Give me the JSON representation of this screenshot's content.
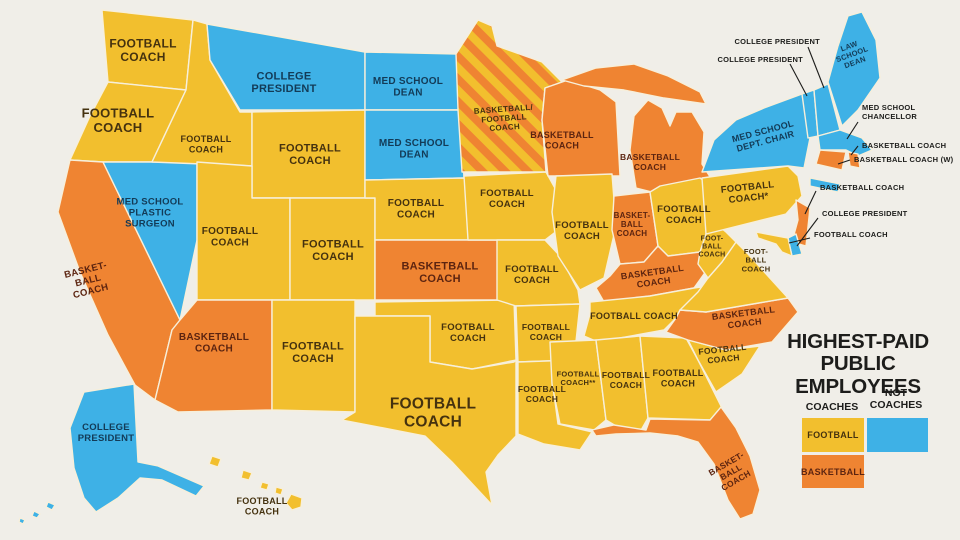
{
  "title": {
    "line1": "HIGHEST-PAID",
    "line2": "PUBLIC EMPLOYEES"
  },
  "legend": {
    "coaches_heading": "COACHES",
    "not_coaches_heading": "NOT COACHES",
    "football_label": "FOOTBALL",
    "basketball_label": "BASKETBALL"
  },
  "colors": {
    "football": "#F2BF2E",
    "basketball": "#EF8432",
    "not_coach": "#3EB1E6",
    "background": "#F0EEE8",
    "border": "#F7EFDA",
    "text_on_football": "#45320F",
    "text_on_basketball": "#5C2410",
    "text_on_not_coach": "#133B57",
    "callout_text": "#1D1D1B"
  },
  "states": {
    "WA": {
      "name": "Washington",
      "label": "FOOTBALL\nCOACH",
      "category": "football"
    },
    "OR": {
      "name": "Oregon",
      "label": "FOOTBALL\nCOACH",
      "category": "football"
    },
    "CA": {
      "name": "California",
      "label": "BASKET-\nBALL\nCOACH",
      "category": "basketball"
    },
    "NV": {
      "name": "Nevada",
      "label": "MED SCHOOL\nPLASTIC\nSURGEON",
      "category": "not_coach"
    },
    "ID": {
      "name": "Idaho",
      "label": "FOOTBALL\nCOACH",
      "category": "football"
    },
    "MT": {
      "name": "Montana",
      "label": "COLLEGE\nPRESIDENT",
      "category": "not_coach"
    },
    "WY": {
      "name": "Wyoming",
      "label": "FOOTBALL\nCOACH",
      "category": "football"
    },
    "UT": {
      "name": "Utah",
      "label": "FOOTBALL\nCOACH",
      "category": "football"
    },
    "CO": {
      "name": "Colorado",
      "label": "FOOTBALL\nCOACH",
      "category": "football"
    },
    "AZ": {
      "name": "Arizona",
      "label": "BASKETBALL\nCOACH",
      "category": "basketball"
    },
    "NM": {
      "name": "New Mexico",
      "label": "FOOTBALL\nCOACH",
      "category": "football"
    },
    "ND": {
      "name": "North Dakota",
      "label": "MED SCHOOL\nDEAN",
      "category": "not_coach"
    },
    "SD": {
      "name": "South Dakota",
      "label": "MED SCHOOL\nDEAN",
      "category": "not_coach"
    },
    "NE": {
      "name": "Nebraska",
      "label": "FOOTBALL\nCOACH",
      "category": "football"
    },
    "KS": {
      "name": "Kansas",
      "label": "BASKETBALL\nCOACH",
      "category": "basketball"
    },
    "OK": {
      "name": "Oklahoma",
      "label": "FOOTBALL\nCOACH",
      "category": "football"
    },
    "TX": {
      "name": "Texas",
      "label": "FOOTBALL\nCOACH",
      "category": "football"
    },
    "MN": {
      "name": "Minnesota",
      "label": "BASKETBALL/\nFOOTBALL\nCOACH",
      "category": "both"
    },
    "IA": {
      "name": "Iowa",
      "label": "FOOTBALL\nCOACH",
      "category": "football"
    },
    "MO": {
      "name": "Missouri",
      "label": "FOOTBALL\nCOACH",
      "category": "football"
    },
    "AR": {
      "name": "Arkansas",
      "label": "FOOTBALL\nCOACH",
      "category": "football"
    },
    "LA": {
      "name": "Louisiana",
      "label": "FOOTBALL\nCOACH",
      "category": "football"
    },
    "WI": {
      "name": "Wisconsin",
      "label": "BASKETBALL\nCOACH",
      "category": "basketball"
    },
    "MI": {
      "name": "Michigan",
      "label": "BASKETBALL\nCOACH",
      "category": "basketball"
    },
    "IL": {
      "name": "Illinois",
      "label": "FOOTBALL\nCOACH",
      "category": "football"
    },
    "IN": {
      "name": "Indiana",
      "label": "BASKET-\nBALL\nCOACH",
      "category": "basketball"
    },
    "OH": {
      "name": "Ohio",
      "label": "FOOTBALL\nCOACH",
      "category": "football"
    },
    "KY": {
      "name": "Kentucky",
      "label": "BASKETBALL\nCOACH",
      "category": "basketball"
    },
    "TN": {
      "name": "Tennessee",
      "label": "FOOTBALL COACH",
      "category": "football"
    },
    "MS": {
      "name": "Mississippi",
      "label": "FOOTBALL\nCOACH**",
      "category": "football"
    },
    "AL": {
      "name": "Alabama",
      "label": "FOOTBALL\nCOACH",
      "category": "football"
    },
    "GA": {
      "name": "Georgia",
      "label": "FOOTBALL\nCOACH",
      "category": "football"
    },
    "FL": {
      "name": "Florida",
      "label": "BASKET-\nBALL\nCOACH",
      "category": "basketball"
    },
    "SC": {
      "name": "South Carolina",
      "label": "FOOTBALL\nCOACH",
      "category": "football"
    },
    "NC": {
      "name": "North Carolina",
      "label": "BASKETBALL\nCOACH",
      "category": "basketball"
    },
    "VA": {
      "name": "Virginia",
      "label": "FOOT-\nBALL\nCOACH",
      "category": "football"
    },
    "WV": {
      "name": "West Virginia",
      "label": "FOOT-\nBALL\nCOACH",
      "category": "football"
    },
    "PA": {
      "name": "Pennsylvania",
      "label": "FOOTBALL\nCOACH*",
      "category": "football"
    },
    "NY": {
      "name": "New York",
      "label": "MED SCHOOL\nDEPT. CHAIR",
      "category": "not_coach"
    },
    "ME": {
      "name": "Maine",
      "label": "LAW\nSCHOOL\nDEAN",
      "category": "not_coach"
    },
    "VT": {
      "name": "Vermont",
      "label": "COLLEGE PRESIDENT",
      "category": "not_coach"
    },
    "NH": {
      "name": "New Hampshire",
      "label": "COLLEGE PRESIDENT",
      "category": "not_coach"
    },
    "MA": {
      "name": "Massachusetts",
      "label": "MED SCHOOL\nCHANCELLOR",
      "category": "not_coach"
    },
    "RI": {
      "name": "Rhode Island",
      "label": "BASKETBALL COACH",
      "category": "basketball"
    },
    "CT": {
      "name": "Connecticut",
      "label": "BASKETBALL COACH (W)",
      "category": "basketball"
    },
    "NJ": {
      "name": "New Jersey",
      "label": "BASKETBALL COACH",
      "category": "basketball"
    },
    "DE": {
      "name": "Delaware",
      "label": "COLLEGE PRESIDENT",
      "category": "not_coach"
    },
    "MD": {
      "name": "Maryland",
      "label": "FOOTBALL COACH",
      "category": "football"
    },
    "AK": {
      "name": "Alaska",
      "label": "COLLEGE\nPRESIDENT",
      "category": "not_coach"
    },
    "HI": {
      "name": "Hawaii",
      "label": "FOOTBALL\nCOACH",
      "category": "football"
    }
  }
}
